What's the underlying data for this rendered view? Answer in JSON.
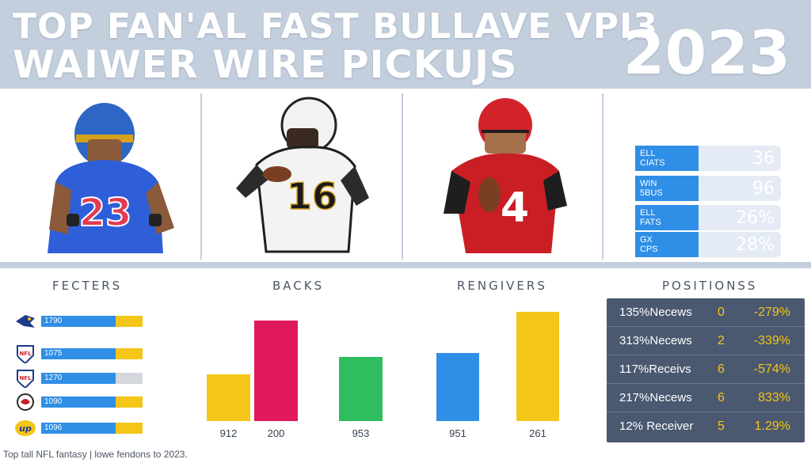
{
  "header": {
    "title_line1": "TOP FAN'AL FAST BULLAVE VPI3",
    "title_line2": "WAIWER WIRE PICKUJS",
    "year": "2023"
  },
  "players": [
    {
      "jersey": "23",
      "jersey_color": "#2e5fd8",
      "helmet_color": "#2d66c4"
    },
    {
      "jersey": "16",
      "jersey_color": "#f3f3f3",
      "helmet_color": "#f2f2f2"
    },
    {
      "jersey": "4",
      "jersey_color": "#c91e24",
      "helmet_color": "#d2232a"
    }
  ],
  "stat_rows": [
    {
      "label_l1": "ELL",
      "label_l2": "CIATS",
      "value": "36"
    },
    {
      "label_l1": "WIN",
      "label_l2": "5BUS",
      "value": "96"
    },
    {
      "label_l1": "ELL",
      "label_l2": "FATS",
      "value": "26%"
    },
    {
      "label_l1": "GX",
      "label_l2": "CPS",
      "value": "28%"
    }
  ],
  "sections": {
    "fecters": "FECTERS",
    "backs": "BACKS",
    "rengivers": "RENGIVERS",
    "positions": "POSITIONSS"
  },
  "team_rows": [
    {
      "logo": "bird-logo-icon",
      "value": "1790",
      "accent": "#f5c518"
    },
    {
      "logo": "nfl-shield-icon",
      "value": "1075",
      "accent": "#f5c518"
    },
    {
      "logo": "nfl-shield-icon",
      "value": "1270",
      "accent": "#d4d7dc"
    },
    {
      "logo": "helmet-logo-icon",
      "value": "1090",
      "accent": "#f5c518"
    },
    {
      "logo": "up-logo-icon",
      "value": "1096",
      "accent": "#f5c518"
    }
  ],
  "chart_data": [
    {
      "type": "bar",
      "title": "BACKS",
      "categories": [
        "912",
        "200",
        "953"
      ],
      "values": [
        45,
        98,
        62
      ],
      "colors": [
        "#f5c518",
        "#e0195a",
        "#2ebd5f"
      ],
      "ylim": [
        0,
        100
      ]
    },
    {
      "type": "bar",
      "title": "RENGIVERS",
      "categories": [
        "951",
        "261"
      ],
      "values": [
        66,
        106
      ],
      "colors": [
        "#2f8fe6",
        "#f5c518"
      ],
      "ylim": [
        0,
        110
      ]
    }
  ],
  "positions_table": [
    {
      "name": "135%Necews",
      "count": "0",
      "change": "-279%"
    },
    {
      "name": "313%Necews",
      "count": "2",
      "change": "-339%"
    },
    {
      "name": "117%Receivs",
      "count": "6",
      "change": "-574%"
    },
    {
      "name": "217%Necews",
      "count": "6",
      "change": "833%"
    },
    {
      "name": "12% Receiver",
      "count": "5",
      "change": "1.29%"
    }
  ],
  "footer": "Top tall NFL fantasy | lowe fendons to 2023."
}
